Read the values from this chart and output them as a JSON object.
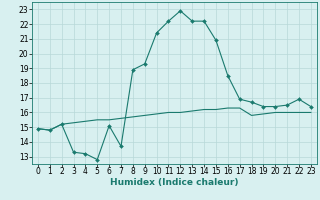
{
  "title": "",
  "xlabel": "Humidex (Indice chaleur)",
  "xlim": [
    -0.5,
    23.5
  ],
  "ylim": [
    12.5,
    23.5
  ],
  "xticks": [
    0,
    1,
    2,
    3,
    4,
    5,
    6,
    7,
    8,
    9,
    10,
    11,
    12,
    13,
    14,
    15,
    16,
    17,
    18,
    19,
    20,
    21,
    22,
    23
  ],
  "yticks": [
    13,
    14,
    15,
    16,
    17,
    18,
    19,
    20,
    21,
    22,
    23
  ],
  "line1_x": [
    0,
    1,
    2,
    3,
    4,
    5,
    6,
    7,
    8,
    9,
    10,
    11,
    12,
    13,
    14,
    15,
    16,
    17,
    18,
    19,
    20,
    21,
    22,
    23
  ],
  "line1_y": [
    14.9,
    14.8,
    15.2,
    13.3,
    13.2,
    12.8,
    15.1,
    13.7,
    18.9,
    19.3,
    21.4,
    22.2,
    22.9,
    22.2,
    22.2,
    20.9,
    18.5,
    16.9,
    16.7,
    16.4,
    16.4,
    16.5,
    16.9,
    16.4
  ],
  "line2_x": [
    0,
    1,
    2,
    3,
    4,
    5,
    6,
    7,
    8,
    9,
    10,
    11,
    12,
    13,
    14,
    15,
    16,
    17,
    18,
    19,
    20,
    21,
    22,
    23
  ],
  "line2_y": [
    14.9,
    14.8,
    15.2,
    15.3,
    15.4,
    15.5,
    15.5,
    15.6,
    15.7,
    15.8,
    15.9,
    16.0,
    16.0,
    16.1,
    16.2,
    16.2,
    16.3,
    16.3,
    15.8,
    15.9,
    16.0,
    16.0,
    16.0,
    16.0
  ],
  "line_color": "#1a7a6e",
  "bg_color": "#d8f0f0",
  "grid_color": "#b8d8d8",
  "label_fontsize": 6.5,
  "tick_fontsize": 5.5
}
